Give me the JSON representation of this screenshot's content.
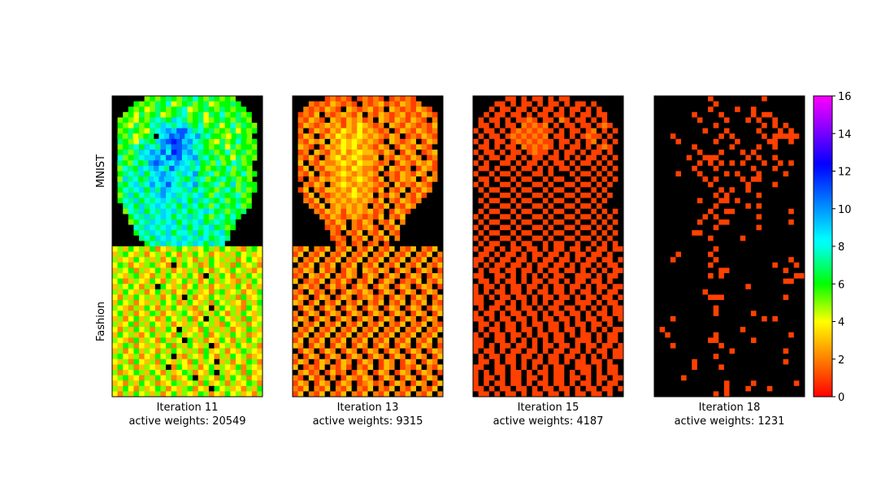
{
  "chart_data": [
    {
      "type": "heatmap",
      "ylabels": [
        "MNIST",
        "Fashion"
      ],
      "xlabel_lines": [
        "Iteration 11",
        "active weights: 20549"
      ],
      "z": [
        "0000005656765768657656500000",
        "0000656576845675674566760000",
        "0006564576567845676576566000",
        "0056475674567856747685675600",
        "0565465787698756745676576500",
        "0654756879878976856746857650",
        "0567654789a9bb97867565746560",
        "06574567 89bab98a786654676500",
        "076548769abcb9a8765475686560",
        "056786987a9bba97865674756650",
        "0675798a9b8cb9a8767568567560",
        "08567899a8bab89a786756475650",
        "0765867aba98a98796758568756 0",
        "05876989a87b989786567685765 0",
        "067879689a98798a678567568560",
        "059786798a99876978567867565 0",
        "0768978a89b8798a767856957660",
        "068789697a988796876578657560",
        "057968789a897878965876785600",
        "0687968789879869787685676500",
        "0078697898786978675867685600",
        "0058796879897867898675767000",
        "0006879789868797865786860000",
        "0005687987896878967876700000",
        "0000879878987968789675600000",
        "0000687987968879687896000000",
        "0000078698987987986787000000",
        "0000006879789879869780000000",
        "4536453624356453465364532564",
        "3564352453642536452435364534",
        "5343645352463542536453524643",
        "4652435634203645236435263452",
        "3546253463524353642543645324",
        "5435634253645364205364253645",
        "4623543642534635246354325364",
        "3546425306435246352435364253",
        "5364352463524365342563452436",
        "4253645352463052436453526345",
        "3645243536452364352645342536",
        "5432536425364532540364532645",
        "4635243652435643253642536435",
        "3524635423645362405364352634",
        "5346253643524353645326435245",
        "4253645253640534263535243653",
        "3645324635426345362453645234",
        "5432635426354063524364253645",
        "4365243534625364350245364352",
        "3524635425364535263452436543",
        "5643524364503254364253645234",
        "4352643526435426354035243652",
        "3645235435026435246354362543",
        "5234653642534652436053452634",
        "4563425364523460354263645243",
        "3425364523465345263452534652",
        "5364253465243562430645342536",
        "4253645352463543652436453425"
      ]
    },
    {
      "type": "heatmap",
      "xlabel_lines": [
        "Iteration 13",
        "active weights: 9315"
      ],
      "z": [
        "0000001212101212101212100000",
        "0002121321210212312132120000",
        "0021213210321231203212132100",
        "0121302123213021321231213210",
        "0213210321323120321321321020",
        "0132123231324321203213212130",
        "0201321324324232120132132120",
        "0132013243234323213201213210",
        "0213230324343232103212301320",
        "0321013234342321320132132100",
        "0120321324234332132013201230",
        "0213102342343223021321320120",
        "0302132234324332120132132310",
        "0130213323243221303212013210",
        "0213021234323232012132132020",
        "0102132323234321302132301320",
        "0021320234323232120312132100",
        "0130213323242321302130213200",
        "0013021232343230213202131000",
        "0021302323232321302132120000",
        "0002130232323202130213200000",
        "0000213231323231201321000000",
        "0000021321232121302130000000",
        "0000002132021320213020000000",
        "0000001213021231021300000000",
        "0000000210213021302100000000",
        "0000000121021302130200000000",
        "0000000012012012010000000000",
        "2130213021302130213021302130",
        "1302130213021302130213021302",
        "3021302130213021302130213021",
        "0213021302130213021302130213",
        "2132031201320321320132013201",
        "1203213021320132013201320132",
        "3012130213102130132012130213",
        "0231201312013201320132013201",
        "2103120201321320132013201320",
        "1320132013201231201320132013",
        "3201302130213021302130213021",
        "0132013201320132013201320132",
        "2013201320132013201320132013",
        "1320132013201320132013201320",
        "3021302130213021302130213021",
        "0213021302130213021302130213",
        "2130213021302130213021302130",
        "1302130213021302130213021302",
        "3201320132013201320132013201",
        "0132013201320132013201320132",
        "2013201320132013201320132013",
        "1320132013201320132013201320",
        "3012130213102130132012130213",
        "0231201312013201320132013201",
        "2103120201321320132013201320",
        "1320132013201231201320132013",
        "2130213021302130213021302130",
        "1302130213021302130213021302"
      ]
    },
    {
      "type": "heatmap",
      "xlabel_lines": [
        "Iteration 15",
        "active weights: 4187"
      ],
      "z": [
        "0000001101011010110000000000",
        "0000110101101011010110100000",
        "0001011011010110101101010000",
        "0010110110101101101011011000",
        "0101101011210110210110101000",
        "0110101102121201011011012100",
        "1011010121212110101101201010",
        "0101101212121201101012110100",
        "1010110121212110110101201010",
        "0110101102121210101101012100",
        "1011010110121101011010110100",
        "0101101101011011010101101010",
        "1010011010110101101011010100",
        "0110100101101010110100101010",
        "1001011010011010001011010100",
        "0110100101100101100100101010",
        "1010011010011010011011010100",
        "0101100101100101100100101000",
        "0010011010011010011011010100",
        "0101100101100101100100101000",
        "0010011010011010011011010000",
        "0101100101100101100100101010",
        "1010011010011010011011010100",
        "0101100101100101100100101010",
        "1010011010011010011011010100",
        "0101100101100101100100101010",
        "1010011010011010011011010100",
        "0101100101100101100100101010",
        "1011010110110101101101011011",
        "0110101101011011010110110100",
        "1101011011010110110101101101",
        "1010110110101101101011010110",
        "0101101101101011011010101011",
        "1100110101010101100111010110",
        "0110101101011011010110110100",
        "1011010110110101101101011011",
        "1010110110101101101011010110",
        "1101011011010110110101101101",
        "1100110101010101100111010110",
        "0101101101101011011010101011",
        "1011010110110101101101011011",
        "1101011011010110110101101101",
        "0110101101011011010110110100",
        "0101101101101011011010101011",
        "1010110110101101101011010110",
        "1100110101010101100111010110",
        "1101011011010110110101101101",
        "1011010110110101101101011011",
        "0101101101101011011010101011",
        "0110101101011011010110110100",
        "1100110101010101100111010110",
        "1010110110101101101011010110",
        "1011010110110101101101011011",
        "1010110110101101101011010110",
        "1101011011010110110101101101",
        "0110101101011011010110110100"
      ]
    },
    {
      "type": "heatmap",
      "xlabel_lines": [
        "Iteration 18",
        "active weights: 1231"
      ],
      "colorbar": {
        "cmap": "gist_rainbow",
        "zero_color": "#000000",
        "lim": [
          0,
          16
        ],
        "ticks": [
          0,
          2,
          4,
          6,
          8,
          10,
          12,
          14,
          16
        ]
      },
      "z": [
        "0000000000100000000010000000",
        "0000000000010000000000000000",
        "0000000000100001001000000000",
        "0000000100001000001011000000",
        "0000000010000100010100100000",
        "0000000000010000000010101000",
        "0000000001000100000100010100",
        "0001000000001010000010111110",
        "0000100000010001000001100100",
        "0000000100000010000100100000",
        "0000000010001000101000000000",
        "0000001001110000010100100000",
        "0000000010101010100010010100",
        "0000000100010000001000100000",
        "0000100010000101000100001000",
        "0000000001010000101100000000",
        "0000000000100000010000100000",
        "0000000000001010010000000000",
        "0000000000010100000100000000",
        "0000000010001101000000000000",
        "0000000000010000010100000000",
        "0000000000100110000000000100",
        "0000000001010000000100000000",
        "0000000010001100000000000100",
        "0000000000010000000100000000",
        "0000000110000000000000000000",
        "0000000000100000100000000000",
        "0000000000000000000000000000",
        "0000000000010000000000000000",
        "0000100000100000000000000000",
        "0001000000010000000000000100",
        "0000000000100000000000100010",
        "0000000000001100000000001000",
        "0000000000101000000000000011",
        "0000000000000000000000001100",
        "0000000000000000010000000000",
        "0000000001000000000000000000",
        "0000000000111000000000001000",
        "0000000000000000000000000000",
        "0000000000010000000000000000",
        "0000000000010000001000000000",
        "0001000000000000000010100000",
        "0000000000000000000000000000",
        "0100000000000000100000000000",
        "0010000000010000000000000100",
        "0000000000110000001000000000",
        "0001000000001000000000000000",
        "0000000000000010000000001000",
        "0000000000010000000000000000",
        "0000000100000000000000001000",
        "0000000100001000000000000000",
        "0000000000000000000000000000",
        "0000010000000000000000000000",
        "0000000000000100001000000010",
        "0000000000000100010001000000",
        "0000000000010100000000000000"
      ]
    }
  ]
}
